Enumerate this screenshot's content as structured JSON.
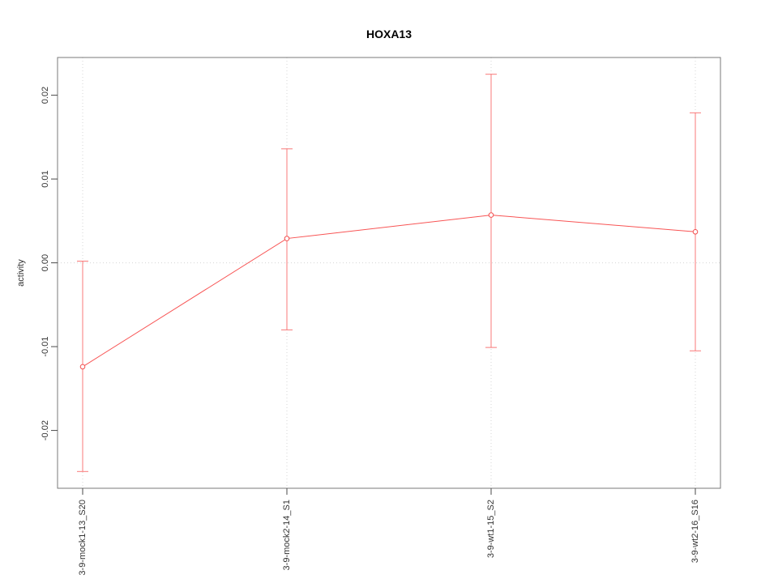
{
  "chart_data": {
    "type": "line",
    "title": "HOXA13",
    "xlabel": "",
    "ylabel": "activity",
    "categories": [
      "3-9-mock1-13_S20",
      "3-9-mock2-14_S1",
      "3-9-wt1-15_S2",
      "3-9-wt2-16_S16"
    ],
    "series": [
      {
        "name": "activity",
        "values": [
          -0.0124,
          0.0029,
          0.0057,
          0.0037
        ],
        "error_upper": [
          0.0002,
          0.0136,
          0.0225,
          0.0179
        ],
        "error_lower": [
          -0.0249,
          -0.008,
          -0.0101,
          -0.0105
        ]
      }
    ],
    "yticks": [
      -0.02,
      -0.01,
      0.0,
      0.01,
      0.02
    ],
    "ytick_labels": [
      "-0.02",
      "-0.01",
      "0.00",
      "0.01",
      "0.02"
    ],
    "ylim": [
      -0.0269,
      0.0245
    ],
    "grid": {
      "vertical_at_categories": true,
      "horizontal_at_zero": true
    },
    "legend": "none",
    "colors": {
      "series_line": "#f85454",
      "error_bar": "#f87878",
      "marker_stroke": "#f24c4c",
      "marker_fill": "#ffffff",
      "grid": "#d4d4d4",
      "box": "#7a7a7a",
      "tick": "#4a4a4a",
      "text": "#333333"
    }
  }
}
